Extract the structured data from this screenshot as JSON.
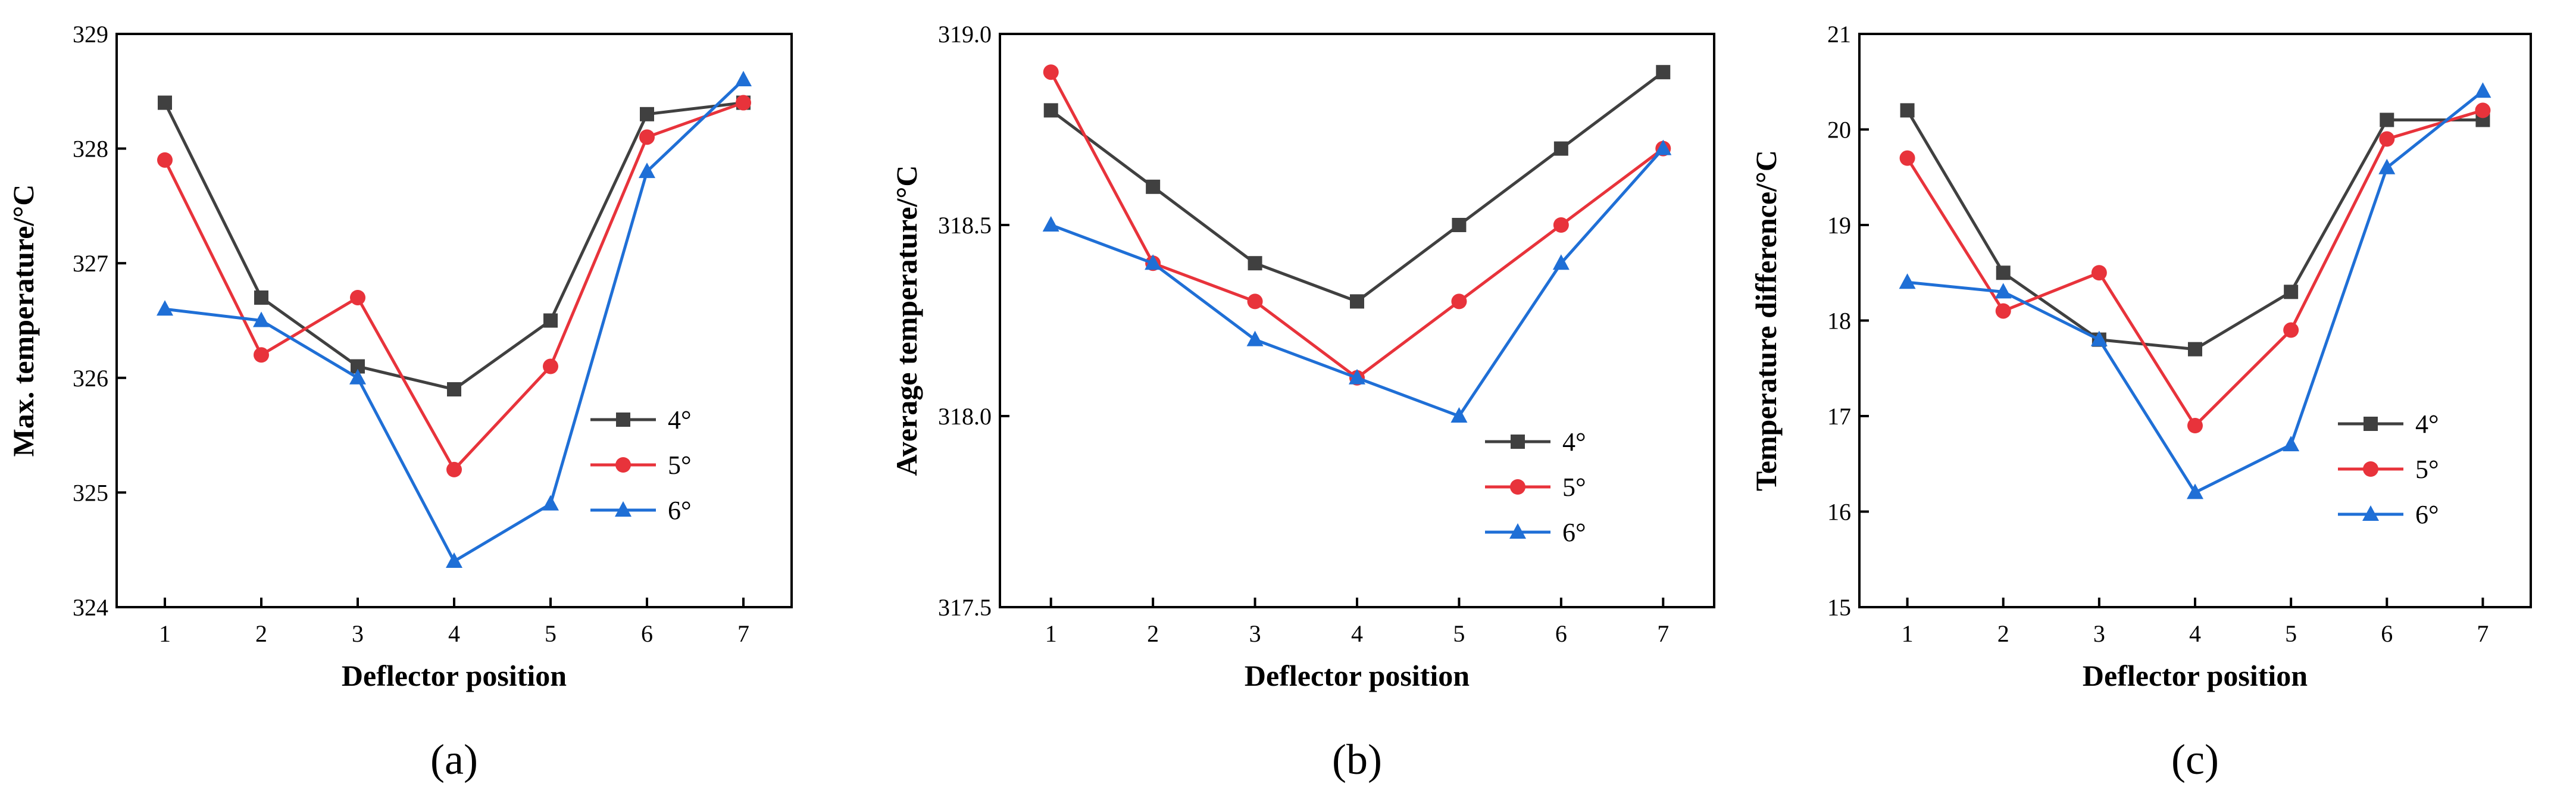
{
  "chart_data": [
    {
      "type": "line",
      "panel_label": "(a)",
      "panel_letter": "a",
      "xlabel": "Deflector position",
      "ylabel": "Max. temperature/°C",
      "x": [
        1,
        2,
        3,
        4,
        5,
        6,
        7
      ],
      "xticks": [
        "1",
        "2",
        "3",
        "4",
        "5",
        "6",
        "7"
      ],
      "xlim": [
        0.5,
        7.5
      ],
      "ylim": [
        324,
        329
      ],
      "yticks": [
        "324",
        "325",
        "326",
        "327",
        "328",
        "329"
      ],
      "legend_position": "lower-right",
      "series": [
        {
          "name": "4°",
          "color": "#404040",
          "marker": "square",
          "values": [
            328.4,
            326.7,
            326.1,
            325.9,
            326.5,
            328.3,
            328.4
          ]
        },
        {
          "name": "5°",
          "color": "#e8333b",
          "marker": "circle",
          "values": [
            327.9,
            326.2,
            326.7,
            325.2,
            326.1,
            328.1,
            328.4
          ]
        },
        {
          "name": "6°",
          "color": "#1f6fd6",
          "marker": "triangle",
          "values": [
            326.6,
            326.5,
            326.0,
            324.4,
            324.9,
            327.8,
            328.6
          ]
        }
      ]
    },
    {
      "type": "line",
      "panel_label": "(b)",
      "panel_letter": "b",
      "xlabel": "Deflector position",
      "ylabel": "Average temperature/°C",
      "x": [
        1,
        2,
        3,
        4,
        5,
        6,
        7
      ],
      "xticks": [
        "1",
        "2",
        "3",
        "4",
        "5",
        "6",
        "7"
      ],
      "xlim": [
        0.5,
        7.5
      ],
      "ylim": [
        317.5,
        319.0
      ],
      "yticks": [
        "317.5",
        "318.0",
        "318.5",
        "319.0"
      ],
      "legend_position": "lower-right",
      "series": [
        {
          "name": "4°",
          "color": "#404040",
          "marker": "square",
          "values": [
            318.8,
            318.6,
            318.4,
            318.3,
            318.5,
            318.7,
            318.9
          ]
        },
        {
          "name": "5°",
          "color": "#e8333b",
          "marker": "circle",
          "values": [
            318.9,
            318.4,
            318.3,
            318.1,
            318.3,
            318.5,
            318.7
          ]
        },
        {
          "name": "6°",
          "color": "#1f6fd6",
          "marker": "triangle",
          "values": [
            318.5,
            318.4,
            318.2,
            318.1,
            318.0,
            318.4,
            318.7
          ]
        }
      ]
    },
    {
      "type": "line",
      "panel_label": "(c)",
      "panel_letter": "c",
      "xlabel": "Deflector position",
      "ylabel": "Temperature difference/°C",
      "x": [
        1,
        2,
        3,
        4,
        5,
        6,
        7
      ],
      "xticks": [
        "1",
        "2",
        "3",
        "4",
        "5",
        "6",
        "7"
      ],
      "xlim": [
        0.5,
        7.5
      ],
      "ylim": [
        15,
        21
      ],
      "yticks": [
        "15",
        "16",
        "17",
        "18",
        "19",
        "20",
        "21"
      ],
      "legend_position": "lower-right",
      "series": [
        {
          "name": "4°",
          "color": "#404040",
          "marker": "square",
          "values": [
            20.2,
            18.5,
            17.8,
            17.7,
            18.3,
            20.1,
            20.1
          ]
        },
        {
          "name": "5°",
          "color": "#e8333b",
          "marker": "circle",
          "values": [
            19.7,
            18.1,
            18.5,
            16.9,
            17.9,
            19.9,
            20.2
          ]
        },
        {
          "name": "6°",
          "color": "#1f6fd6",
          "marker": "triangle",
          "values": [
            18.4,
            18.3,
            17.8,
            16.2,
            16.7,
            19.6,
            20.4
          ]
        }
      ]
    }
  ]
}
